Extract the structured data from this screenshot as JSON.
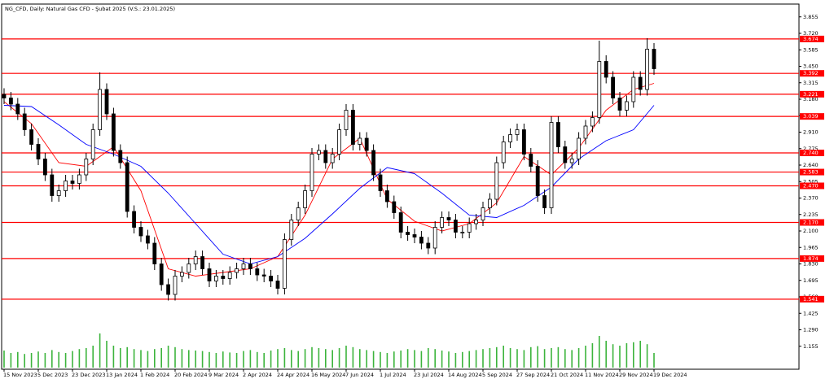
{
  "chart_data": {
    "type": "candlestick",
    "title": "NG_CFD, Daily: Natural Gas CFD - Şubat 2025 (V.S.: 23.01.2025)",
    "categories": [
      "15 Nov 2023",
      null,
      null,
      null,
      null,
      "5 Dec 2023",
      null,
      null,
      null,
      null,
      "23 Dec 2023",
      null,
      null,
      null,
      null,
      "13 Jan 2024",
      null,
      null,
      null,
      null,
      "1 Feb 2024",
      null,
      null,
      null,
      null,
      "20 Feb 2024",
      null,
      null,
      null,
      null,
      "9 Mar 2024",
      null,
      null,
      null,
      null,
      "2 Apr 2024",
      null,
      null,
      null,
      null,
      "24 Apr 2024",
      null,
      null,
      null,
      null,
      "16 May 2024",
      null,
      null,
      null,
      null,
      "7 Jun 2024",
      null,
      null,
      null,
      null,
      "1 Jul 2024",
      null,
      null,
      null,
      null,
      "23 Jul 2024",
      null,
      null,
      null,
      null,
      "14 Aug 2024",
      null,
      null,
      null,
      null,
      "5 Sep 2024",
      null,
      null,
      null,
      null,
      "27 Sep 2024",
      null,
      null,
      null,
      null,
      "21 Oct 2024",
      null,
      null,
      null,
      null,
      "11 Nov 2024",
      null,
      null,
      null,
      null,
      "29 Nov 2024",
      null,
      null,
      null,
      null,
      "19 Dec 2024"
    ],
    "open": [
      3.22,
      3.19,
      3.14,
      3.06,
      2.93,
      2.81,
      2.69,
      2.56,
      2.39,
      2.43,
      2.51,
      2.49,
      2.56,
      2.69,
      2.93,
      3.26,
      3.06,
      2.76,
      2.66,
      2.26,
      2.13,
      2.06,
      2.0,
      1.83,
      1.66,
      1.58,
      1.73,
      1.76,
      1.83,
      1.89,
      1.79,
      1.69,
      1.73,
      1.71,
      1.76,
      1.79,
      1.83,
      1.79,
      1.74,
      1.73,
      1.69,
      1.63,
      2.03,
      2.19,
      2.29,
      2.43,
      2.73,
      2.76,
      2.66,
      2.73,
      2.93,
      3.09,
      2.81,
      2.86,
      2.76,
      2.56,
      2.43,
      2.34,
      2.25,
      2.09,
      2.07,
      2.05,
      2.0,
      1.96,
      2.13,
      2.21,
      2.19,
      2.09,
      2.09,
      2.16,
      2.19,
      2.29,
      2.36,
      2.66,
      2.83,
      2.89,
      2.93,
      2.73,
      2.63,
      2.39,
      2.29,
      2.99,
      2.79,
      2.66,
      2.69,
      2.86,
      2.96,
      3.03,
      3.49,
      3.36,
      3.19,
      3.09,
      3.16,
      3.36,
      3.26,
      3.59
    ],
    "high": [
      3.27,
      3.24,
      3.19,
      3.11,
      2.98,
      2.86,
      2.74,
      2.61,
      2.48,
      2.56,
      2.56,
      2.61,
      2.74,
      2.98,
      3.4,
      3.31,
      3.11,
      2.81,
      2.71,
      2.31,
      2.18,
      2.11,
      2.05,
      1.88,
      1.71,
      1.78,
      1.81,
      1.88,
      1.94,
      1.94,
      1.84,
      1.78,
      1.78,
      1.81,
      1.84,
      1.88,
      1.88,
      1.84,
      1.79,
      1.78,
      1.74,
      2.08,
      2.24,
      2.34,
      2.48,
      2.78,
      2.81,
      2.81,
      2.78,
      2.98,
      3.14,
      3.14,
      2.91,
      2.91,
      2.81,
      2.61,
      2.48,
      2.39,
      2.3,
      2.14,
      2.12,
      2.1,
      2.05,
      2.18,
      2.26,
      2.26,
      2.24,
      2.14,
      2.21,
      2.24,
      2.34,
      2.41,
      2.71,
      2.88,
      2.94,
      2.98,
      2.98,
      2.78,
      2.68,
      2.44,
      3.04,
      3.04,
      2.84,
      2.74,
      2.91,
      3.01,
      3.08,
      3.66,
      3.54,
      3.41,
      3.24,
      3.21,
      3.41,
      3.41,
      3.68,
      3.64
    ],
    "low": [
      3.14,
      3.09,
      3.01,
      2.88,
      2.76,
      2.64,
      2.51,
      2.34,
      2.34,
      2.38,
      2.44,
      2.44,
      2.51,
      2.64,
      2.88,
      3.01,
      2.71,
      2.61,
      2.21,
      2.08,
      2.01,
      1.95,
      1.78,
      1.61,
      1.53,
      1.53,
      1.68,
      1.71,
      1.78,
      1.74,
      1.64,
      1.64,
      1.66,
      1.66,
      1.71,
      1.74,
      1.74,
      1.69,
      1.68,
      1.64,
      1.58,
      1.58,
      1.98,
      2.14,
      2.24,
      2.38,
      2.68,
      2.61,
      2.61,
      2.68,
      2.88,
      2.76,
      2.76,
      2.71,
      2.51,
      2.38,
      2.29,
      2.2,
      2.04,
      2.02,
      2.0,
      1.95,
      1.91,
      1.91,
      2.08,
      2.14,
      2.04,
      2.04,
      2.04,
      2.11,
      2.14,
      2.24,
      2.31,
      2.61,
      2.78,
      2.84,
      2.68,
      2.58,
      2.34,
      2.24,
      2.24,
      2.74,
      2.61,
      2.61,
      2.64,
      2.81,
      2.91,
      2.98,
      3.31,
      3.14,
      3.04,
      3.04,
      3.11,
      3.21,
      3.21,
      3.38
    ],
    "close": [
      3.19,
      3.14,
      3.06,
      2.93,
      2.81,
      2.69,
      2.56,
      2.39,
      2.43,
      2.51,
      2.49,
      2.56,
      2.69,
      2.93,
      3.26,
      3.06,
      2.76,
      2.66,
      2.26,
      2.13,
      2.06,
      2.0,
      1.83,
      1.66,
      1.58,
      1.73,
      1.76,
      1.83,
      1.89,
      1.79,
      1.69,
      1.73,
      1.71,
      1.76,
      1.79,
      1.83,
      1.79,
      1.74,
      1.73,
      1.69,
      1.63,
      2.03,
      2.19,
      2.29,
      2.43,
      2.73,
      2.76,
      2.66,
      2.73,
      2.93,
      3.09,
      2.81,
      2.86,
      2.76,
      2.56,
      2.43,
      2.34,
      2.25,
      2.09,
      2.07,
      2.05,
      2.0,
      1.96,
      2.13,
      2.21,
      2.19,
      2.09,
      2.09,
      2.16,
      2.19,
      2.29,
      2.36,
      2.66,
      2.83,
      2.89,
      2.93,
      2.73,
      2.63,
      2.39,
      2.29,
      2.99,
      2.79,
      2.66,
      2.69,
      2.86,
      2.96,
      3.03,
      3.49,
      3.36,
      3.19,
      3.09,
      3.16,
      3.36,
      3.26,
      3.59,
      3.43
    ],
    "color": "#000000",
    "ylim": [
      0.96,
      3.94
    ],
    "yticks": [
      3.855,
      {
        "value": 3.72,
        "label": "3.720"
      },
      3.585,
      {
        "value": 3.45,
        "label": "3.450"
      },
      3.315,
      {
        "value": 3.18,
        "label": "3.180"
      },
      3.045,
      {
        "value": 2.91,
        "label": "2.910"
      },
      2.775,
      {
        "value": 2.64,
        "label": "2.640"
      },
      2.505,
      {
        "value": 2.37,
        "label": "2.370"
      },
      2.235,
      {
        "value": 2.1,
        "label": "2.100"
      },
      1.965,
      {
        "value": 1.83,
        "label": "1.830"
      },
      1.695,
      {
        "value": 1.56,
        "label": "1.560"
      },
      1.425,
      {
        "value": 1.29,
        "label": "1.290"
      },
      1.155
    ],
    "lines": [
      {
        "color": "#ff0000",
        "x": [
          0,
          4,
          8,
          12,
          16,
          20,
          24,
          28,
          32,
          36,
          40,
          44,
          48,
          52,
          56,
          60,
          64,
          68,
          72,
          76,
          80,
          84,
          88,
          92,
          95
        ],
        "values": [
          3.16,
          2.98,
          2.66,
          2.63,
          2.79,
          2.43,
          1.79,
          1.73,
          1.76,
          1.79,
          1.89,
          2.23,
          2.69,
          2.86,
          2.36,
          2.18,
          2.1,
          2.16,
          2.33,
          2.71,
          2.56,
          2.78,
          3.09,
          3.26,
          3.31
        ]
      },
      {
        "color": "#0000ff",
        "x": [
          0,
          4,
          8,
          12,
          16,
          20,
          24,
          28,
          32,
          36,
          40,
          44,
          48,
          52,
          56,
          60,
          64,
          68,
          72,
          76,
          80,
          84,
          88,
          92,
          95
        ],
        "values": [
          3.13,
          3.12,
          2.97,
          2.81,
          2.73,
          2.63,
          2.41,
          2.16,
          1.91,
          1.83,
          1.89,
          2.04,
          2.24,
          2.45,
          2.62,
          2.57,
          2.41,
          2.23,
          2.21,
          2.31,
          2.46,
          2.69,
          2.84,
          2.93,
          3.13
        ]
      }
    ],
    "levels": {
      "color": "#ff0000",
      "values": [
        3.674,
        3.392,
        3.221,
        3.039,
        {
          "value": 2.74,
          "label": "2.740"
        },
        2.583,
        {
          "value": 2.47,
          "label": "2.470"
        },
        {
          "value": 2.17,
          "label": "2.170"
        },
        1.874,
        1.541
      ]
    },
    "volume": {
      "color": "#3cb43c",
      "axis": "y2",
      "values": [
        35,
        30,
        32,
        28,
        30,
        33,
        30,
        36,
        32,
        30,
        34,
        38,
        40,
        45,
        70,
        55,
        45,
        40,
        42,
        38,
        36,
        34,
        38,
        40,
        45,
        42,
        38,
        36,
        35,
        34,
        32,
        30,
        33,
        31,
        30,
        34,
        36,
        32,
        30,
        35,
        38,
        40,
        36,
        34,
        38,
        42,
        40,
        38,
        36,
        40,
        45,
        42,
        38,
        36,
        34,
        32,
        30,
        33,
        35,
        38,
        36,
        34,
        40,
        38,
        35,
        33,
        30,
        32,
        34,
        36,
        38,
        40,
        42,
        45,
        40,
        38,
        36,
        42,
        44,
        38,
        40,
        42,
        38,
        36,
        40,
        45,
        50,
        65,
        55,
        48,
        45,
        50,
        52,
        55,
        48,
        30
      ]
    },
    "y2lim": [
      0,
      100
    ]
  }
}
